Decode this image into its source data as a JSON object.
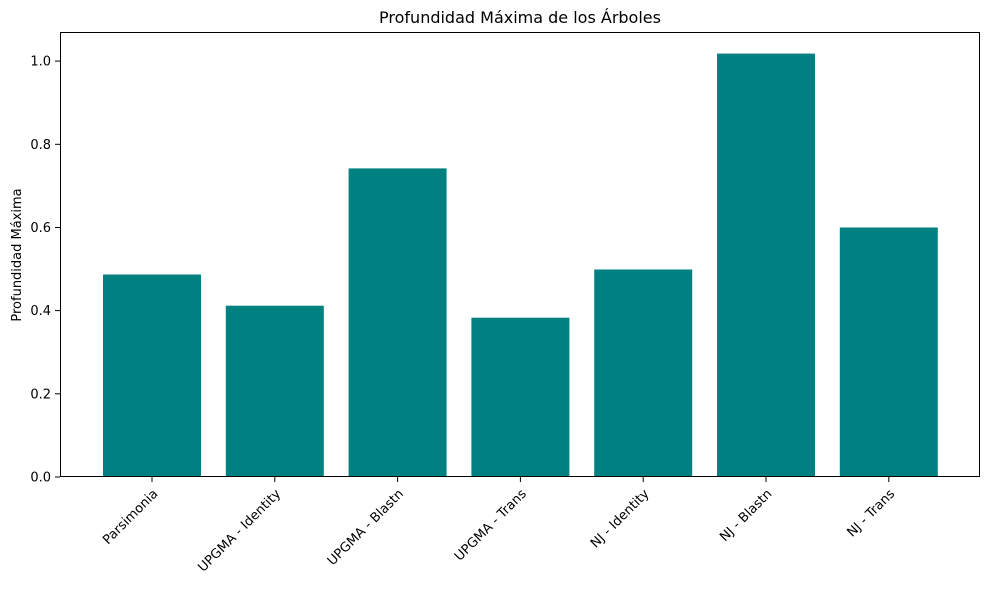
{
  "chart_data": {
    "type": "bar",
    "title": "Profundidad Máxima de los Árboles",
    "xlabel": "",
    "ylabel": "Profundidad Máxima",
    "categories": [
      "Parsimonia",
      "UPGMA - Identity",
      "UPGMA - Blastn",
      "UPGMA - Trans",
      "NJ - Identity",
      "NJ - Blastn",
      "NJ - Trans"
    ],
    "values": [
      0.487,
      0.412,
      0.742,
      0.383,
      0.499,
      1.018,
      0.6
    ],
    "ylim": [
      0,
      1.07
    ],
    "yticks": [
      "0.0",
      "0.2",
      "0.4",
      "0.6",
      "0.8",
      "1.0"
    ],
    "grid": false,
    "bar_color": "#008080"
  }
}
